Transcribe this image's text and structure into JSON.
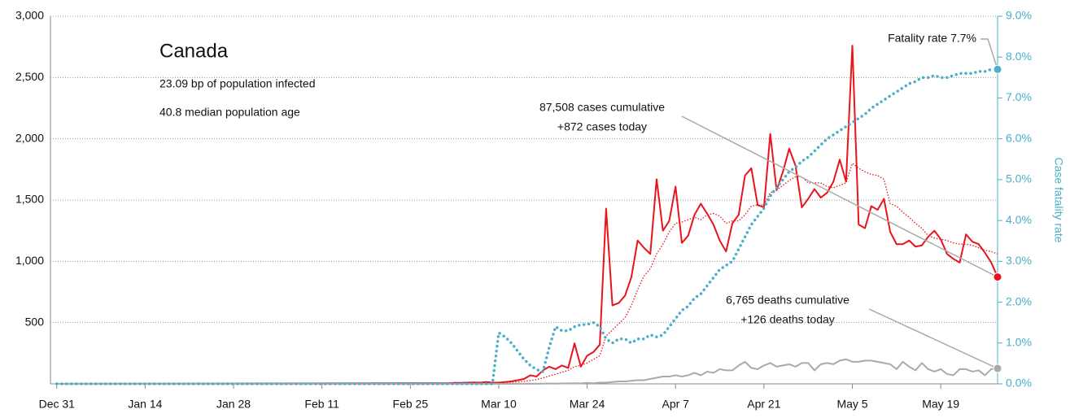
{
  "chart_data": {
    "type": "line",
    "title": "Canada",
    "subtitle": [
      "23.09 bp of population infected",
      "40.8 median population age"
    ],
    "y2label": "Case fatality rate",
    "annotations": {
      "cases": [
        "87,508 cases cumulative",
        "+872 cases today"
      ],
      "deaths": [
        "6,765 deaths cumulative",
        "+126 deaths today"
      ],
      "fatality": "Fatality rate 7.7%"
    },
    "x": [
      0,
      61,
      62,
      63,
      64,
      65,
      66,
      67,
      68,
      69,
      70,
      71,
      72,
      73,
      74,
      75,
      76,
      77,
      78,
      79,
      80,
      81,
      82,
      83,
      84,
      85,
      86,
      87,
      88,
      89,
      90,
      91,
      92,
      93,
      94,
      95,
      96,
      97,
      98,
      99,
      100,
      101,
      102,
      103,
      104,
      105,
      106,
      107,
      108,
      109,
      110,
      111,
      112,
      113,
      114,
      115,
      116,
      117,
      118,
      119,
      120,
      121,
      122,
      123,
      124,
      125,
      126,
      127,
      128,
      129,
      130,
      131,
      132,
      133,
      134,
      135,
      136,
      137,
      138,
      139,
      140,
      141,
      142,
      143,
      144,
      145,
      146,
      147,
      148,
      149
    ],
    "xlim": [
      -1,
      149
    ],
    "xticks": [
      {
        "value": 0,
        "label": "Dec 31"
      },
      {
        "value": 14,
        "label": "Jan 14"
      },
      {
        "value": 28,
        "label": "Jan 28"
      },
      {
        "value": 42,
        "label": "Feb 11"
      },
      {
        "value": 56,
        "label": "Feb 25"
      },
      {
        "value": 70,
        "label": "Mar 10"
      },
      {
        "value": 84,
        "label": "Mar 24"
      },
      {
        "value": 98,
        "label": "Apr 7"
      },
      {
        "value": 112,
        "label": "Apr 21"
      },
      {
        "value": 126,
        "label": "May 5"
      },
      {
        "value": 140,
        "label": "May 19"
      }
    ],
    "ylim": [
      0,
      3000
    ],
    "yticks": [
      500,
      {
        "value": 1000,
        "label": "1,000"
      },
      {
        "value": 1500,
        "label": "1,500"
      },
      {
        "value": 2000,
        "label": "2,000"
      },
      {
        "value": 2500,
        "label": "2,500"
      },
      {
        "value": 3000,
        "label": "3,000"
      }
    ],
    "y2lim": [
      0,
      9
    ],
    "y2ticks": [
      {
        "value": 0,
        "label": "0.0%"
      },
      {
        "value": 1,
        "label": "1.0%"
      },
      {
        "value": 2,
        "label": "2.0%"
      },
      {
        "value": 3,
        "label": "3.0%"
      },
      {
        "value": 4,
        "label": "4.0%"
      },
      {
        "value": 5,
        "label": "5.0%"
      },
      {
        "value": 6,
        "label": "6.0%"
      },
      {
        "value": 7,
        "label": "7.0%"
      },
      {
        "value": 8,
        "label": "8.0%"
      },
      {
        "value": 9,
        "label": "9.0%"
      }
    ],
    "grid": true,
    "series": [
      {
        "color": "#e8141c",
        "line_style": "dotted-thin",
        "values": [
          0,
          2,
          3,
          4,
          5,
          6,
          7,
          8,
          9,
          10,
          10,
          11,
          13,
          16,
          20,
          27,
          35,
          48,
          64,
          78,
          95,
          110,
          140,
          150,
          170,
          200,
          230,
          390,
          440,
          490,
          540,
          640,
          770,
          880,
          940,
          1060,
          1140,
          1240,
          1310,
          1320,
          1340,
          1360,
          1340,
          1380,
          1390,
          1370,
          1310,
          1330,
          1330,
          1380,
          1450,
          1460,
          1460,
          1560,
          1580,
          1620,
          1660,
          1690,
          1690,
          1640,
          1640,
          1640,
          1610,
          1600,
          1620,
          1640,
          1800,
          1760,
          1730,
          1710,
          1700,
          1670,
          1470,
          1450,
          1400,
          1360,
          1310,
          1270,
          1210,
          1190,
          1180,
          1170,
          1150,
          1140,
          1140,
          1130,
          1110,
          1090,
          1080,
          1060
        ]
      },
      {
        "color": "#e8141c",
        "line_style": "solid",
        "end_dot": true,
        "values": [
          0,
          5,
          5,
          8,
          8,
          10,
          12,
          10,
          15,
          10,
          10,
          15,
          20,
          30,
          40,
          70,
          60,
          110,
          140,
          120,
          150,
          130,
          330,
          140,
          230,
          260,
          320,
          1430,
          640,
          660,
          720,
          870,
          1170,
          1110,
          1060,
          1670,
          1250,
          1330,
          1610,
          1150,
          1210,
          1380,
          1470,
          1390,
          1300,
          1170,
          1080,
          1310,
          1380,
          1700,
          1760,
          1460,
          1440,
          2040,
          1580,
          1730,
          1920,
          1780,
          1440,
          1510,
          1590,
          1520,
          1560,
          1650,
          1830,
          1650,
          2760,
          1300,
          1270,
          1450,
          1420,
          1510,
          1240,
          1140,
          1140,
          1170,
          1120,
          1130,
          1200,
          1250,
          1180,
          1060,
          1020,
          990,
          1220,
          1160,
          1140,
          1070,
          990,
          872
        ]
      },
      {
        "color": "#aaaaaa",
        "line_style": "solid",
        "end_dot": true,
        "values": [
          0,
          0,
          0,
          0,
          0,
          0,
          0,
          0,
          0,
          1,
          0,
          1,
          0,
          1,
          1,
          2,
          1,
          2,
          3,
          2,
          3,
          4,
          5,
          3,
          8,
          5,
          10,
          10,
          15,
          20,
          20,
          25,
          30,
          30,
          40,
          50,
          60,
          60,
          70,
          60,
          70,
          90,
          70,
          100,
          90,
          120,
          110,
          110,
          150,
          180,
          130,
          120,
          150,
          170,
          140,
          150,
          160,
          140,
          170,
          170,
          110,
          160,
          170,
          160,
          190,
          200,
          180,
          180,
          190,
          190,
          180,
          170,
          160,
          120,
          180,
          140,
          110,
          170,
          120,
          100,
          120,
          80,
          70,
          120,
          120,
          100,
          110,
          70,
          120,
          126
        ]
      },
      {
        "color": "#4aafc7",
        "line_style": "dotted-thick",
        "axis": "y2",
        "end_dot": true,
        "values": [
          0,
          0,
          0,
          0,
          0,
          0,
          0,
          0,
          0,
          0,
          1.25,
          1.15,
          1.0,
          0.8,
          0.6,
          0.45,
          0.35,
          0.3,
          0.9,
          1.4,
          1.3,
          1.3,
          1.4,
          1.45,
          1.45,
          1.5,
          1.4,
          1.1,
          1.0,
          1.1,
          1.1,
          1.0,
          1.1,
          1.1,
          1.2,
          1.15,
          1.2,
          1.4,
          1.6,
          1.8,
          1.9,
          2.1,
          2.2,
          2.4,
          2.6,
          2.8,
          2.9,
          3.0,
          3.3,
          3.6,
          3.9,
          4.1,
          4.3,
          4.6,
          4.8,
          5.0,
          5.2,
          5.3,
          5.45,
          5.55,
          5.7,
          5.85,
          6.0,
          6.1,
          6.2,
          6.3,
          6.4,
          6.5,
          6.6,
          6.75,
          6.85,
          6.95,
          7.05,
          7.15,
          7.25,
          7.35,
          7.4,
          7.5,
          7.5,
          7.55,
          7.5,
          7.5,
          7.55,
          7.6,
          7.6,
          7.6,
          7.65,
          7.65,
          7.7,
          7.7
        ]
      }
    ]
  }
}
